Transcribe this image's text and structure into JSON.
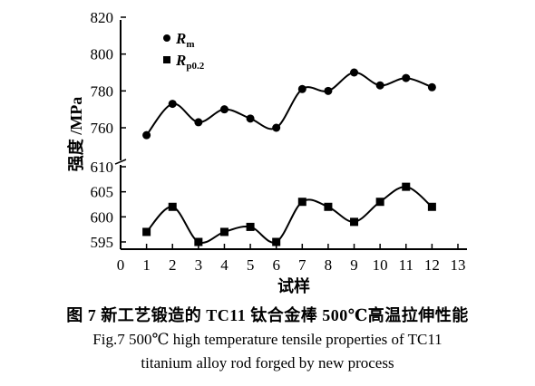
{
  "chart_data": {
    "type": "line",
    "xlabel": "试样",
    "ylabel": "强度 /MPa",
    "x": [
      1,
      2,
      3,
      4,
      5,
      6,
      7,
      8,
      9,
      10,
      11,
      12
    ],
    "xticks": [
      "0",
      "1",
      "2",
      "3",
      "4",
      "5",
      "6",
      "7",
      "8",
      "9",
      "10",
      "11",
      "12",
      "13"
    ],
    "xlim": [
      0,
      13
    ],
    "y_axis_break": true,
    "upper_panel": {
      "ylim": [
        750,
        820
      ],
      "yticks": [
        "760",
        "780",
        "800",
        "820"
      ]
    },
    "lower_panel": {
      "ylim": [
        593,
        610
      ],
      "yticks": [
        "595",
        "600",
        "605",
        "610"
      ]
    },
    "series": [
      {
        "name": "R",
        "subscript": "m",
        "marker": "circle",
        "values": [
          756,
          773,
          763,
          770,
          765,
          760,
          781,
          780,
          790,
          783,
          787,
          782
        ]
      },
      {
        "name": "R",
        "subscript": "p0.2",
        "marker": "square",
        "values": [
          597,
          602,
          595,
          597,
          598,
          595,
          603,
          602,
          599,
          603,
          606,
          602
        ]
      }
    ],
    "legend_position": "top-left",
    "grid": false,
    "smooth": true
  },
  "caption": {
    "chinese": "图 7  新工艺锻造的 TC11 钛合金棒 500℃高温拉伸性能",
    "english_line1": "Fig.7   500℃ high temperature tensile properties of TC11",
    "english_line2": "titanium alloy rod forged by new process"
  }
}
